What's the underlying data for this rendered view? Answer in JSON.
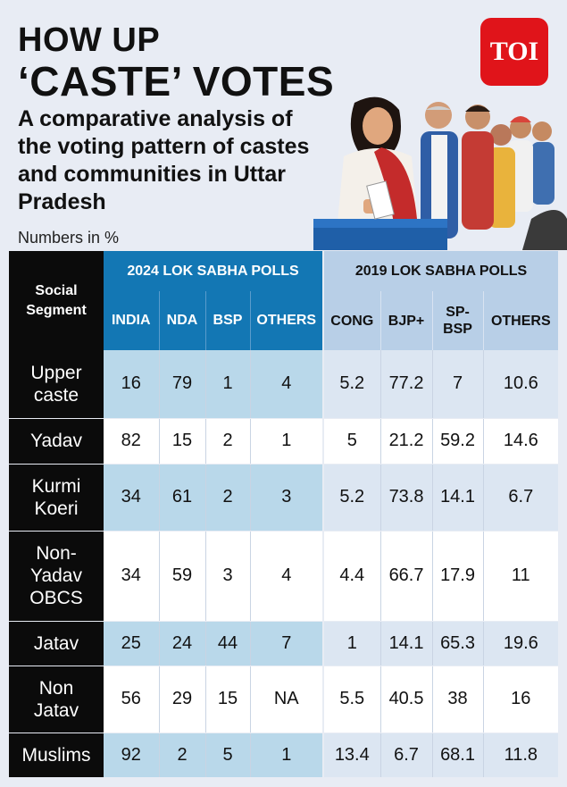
{
  "header": {
    "title_line1": "HOW UP",
    "title_line2": "‘CASTE’ VOTES",
    "subtitle": "A comparative analysis of the voting pattern of castes and communities in Uttar Pradesh",
    "unit_note": "Numbers in %",
    "logo_text": "TOI"
  },
  "colors": {
    "header_2024": "#1377b4",
    "header_2019": "#b8cfe7",
    "segment_column": "#0b0b0b",
    "logo": "#e0141a"
  },
  "table": {
    "segment_header": [
      "Social",
      "Segment"
    ],
    "group_2024": "2024 LOK SABHA POLLS",
    "group_2019": "2019 LOK SABHA POLLS",
    "cols_2024": [
      "INDIA",
      "NDA",
      "BSP",
      "OTHERS"
    ],
    "cols_2019": [
      "CONG",
      "BJP+",
      "SP-",
      "BSP",
      "OTHERS"
    ],
    "rows": [
      {
        "segment": [
          "Upper",
          "caste"
        ],
        "v2024": [
          "16",
          "79",
          "1",
          "4"
        ],
        "v2019": [
          "5.2",
          "77.2",
          "7",
          "10.6"
        ]
      },
      {
        "segment": [
          "Yadav"
        ],
        "v2024": [
          "82",
          "15",
          "2",
          "1"
        ],
        "v2019": [
          "5",
          "21.2",
          "59.2",
          "14.6"
        ]
      },
      {
        "segment": [
          "Kurmi",
          "Koeri"
        ],
        "v2024": [
          "34",
          "61",
          "2",
          "3"
        ],
        "v2019": [
          "5.2",
          "73.8",
          "14.1",
          "6.7"
        ]
      },
      {
        "segment": [
          "Non-",
          "Yadav",
          "OBCS"
        ],
        "v2024": [
          "34",
          "59",
          "3",
          "4"
        ],
        "v2019": [
          "4.4",
          "66.7",
          "17.9",
          "11"
        ]
      },
      {
        "segment": [
          "Jatav"
        ],
        "v2024": [
          "25",
          "24",
          "44",
          "7"
        ],
        "v2019": [
          "1",
          "14.1",
          "65.3",
          "19.6"
        ]
      },
      {
        "segment": [
          "Non",
          "Jatav"
        ],
        "v2024": [
          "56",
          "29",
          "15",
          "NA"
        ],
        "v2019": [
          "5.5",
          "40.5",
          "38",
          "16"
        ]
      },
      {
        "segment": [
          "Muslims"
        ],
        "v2024": [
          "92",
          "2",
          "5",
          "1"
        ],
        "v2019": [
          "13.4",
          "6.7",
          "68.1",
          "11.8"
        ]
      }
    ]
  },
  "chart_data": {
    "type": "table",
    "title": "HOW UP ‘CASTE’ VOTES",
    "subtitle": "A comparative analysis of the voting pattern of castes and communities in Uttar Pradesh",
    "unit": "Numbers in %",
    "categories": [
      "Upper caste",
      "Yadav",
      "Kurmi Koeri",
      "Non-Yadav OBCS",
      "Jatav",
      "Non Jatav",
      "Muslims"
    ],
    "series": [
      {
        "name": "2024 LOK SABHA POLLS INDIA",
        "values": [
          16,
          82,
          34,
          34,
          25,
          56,
          92
        ]
      },
      {
        "name": "2024 LOK SABHA POLLS NDA",
        "values": [
          79,
          15,
          61,
          59,
          24,
          29,
          2
        ]
      },
      {
        "name": "2024 LOK SABHA POLLS BSP",
        "values": [
          1,
          2,
          2,
          3,
          44,
          15,
          5
        ]
      },
      {
        "name": "2024 LOK SABHA POLLS OTHERS",
        "values": [
          "4",
          "1",
          "3",
          "4",
          "7",
          "NA",
          "1"
        ]
      },
      {
        "name": "2019 LOK SABHA POLLS CONG",
        "values": [
          5.2,
          5,
          5.2,
          4.4,
          1,
          5.5,
          13.4
        ]
      },
      {
        "name": "2019 LOK SABHA POLLS BJP+",
        "values": [
          77.2,
          21.2,
          73.8,
          66.7,
          14.1,
          40.5,
          6.7
        ]
      },
      {
        "name": "2019 LOK SABHA POLLS SP-BSP",
        "values": [
          7,
          59.2,
          14.1,
          17.9,
          65.3,
          38,
          68.1
        ]
      },
      {
        "name": "2019 LOK SABHA POLLS OTHERS",
        "values": [
          10.6,
          14.6,
          6.7,
          11,
          19.6,
          16,
          11.8
        ]
      }
    ]
  }
}
